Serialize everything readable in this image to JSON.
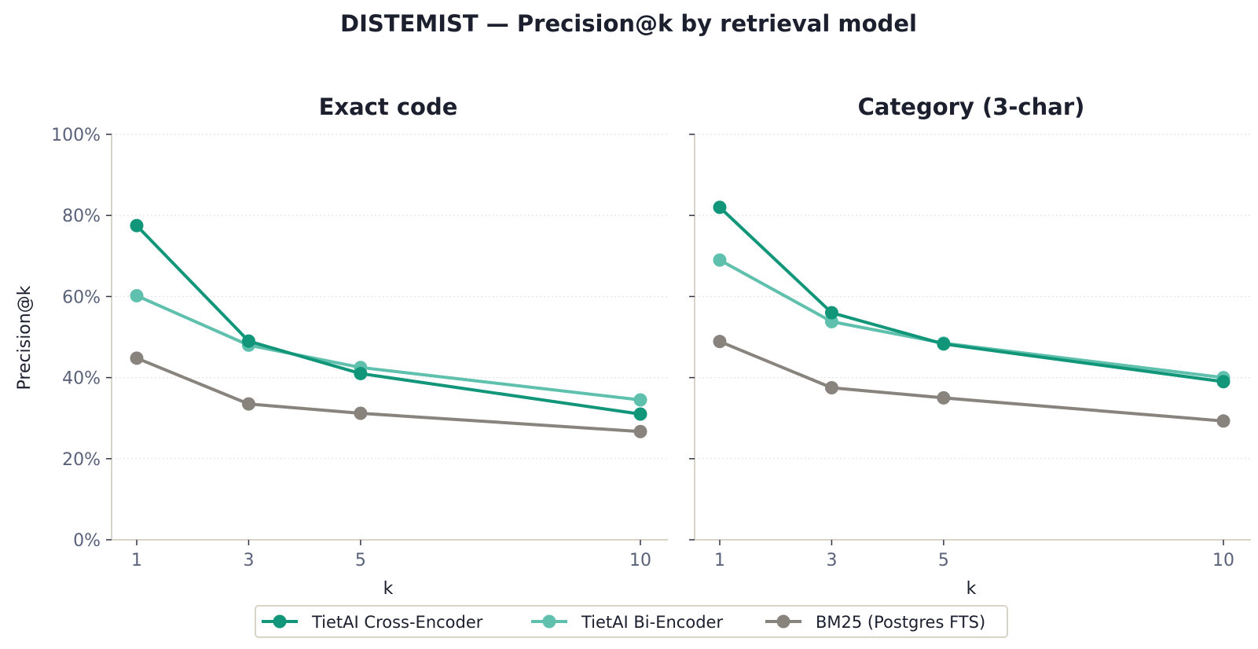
{
  "chart_data": {
    "type": "line",
    "title": "DISTEMIST — Precision@k by retrieval model",
    "x": [
      1,
      3,
      5,
      10
    ],
    "ylim": [
      0,
      100
    ],
    "yticks": [
      0,
      20,
      40,
      60,
      80,
      100
    ],
    "ytick_labels": [
      "0%",
      "20%",
      "40%",
      "60%",
      "80%",
      "100%"
    ],
    "xlabel": "k",
    "ylabel": "Precision@k",
    "grid": "y-dotted",
    "legend_position": "bottom-center",
    "series_meta": [
      {
        "name": "TietAI Cross-Encoder",
        "color": "#12967a"
      },
      {
        "name": "TietAI Bi-Encoder",
        "color": "#5fc0ad"
      },
      {
        "name": "BM25 (Postgres FTS)",
        "color": "#88837d"
      }
    ],
    "panels": [
      {
        "title": "Exact code",
        "series": [
          {
            "name": "TietAI Cross-Encoder",
            "values": [
              77.5,
              49.0,
              41.0,
              31.0
            ]
          },
          {
            "name": "TietAI Bi-Encoder",
            "values": [
              60.2,
              48.0,
              42.5,
              34.5
            ]
          },
          {
            "name": "BM25 (Postgres FTS)",
            "values": [
              44.8,
              33.5,
              31.2,
              26.7
            ]
          }
        ]
      },
      {
        "title": "Category (3-char)",
        "series": [
          {
            "name": "TietAI Cross-Encoder",
            "values": [
              82.0,
              56.0,
              48.3,
              39.0
            ]
          },
          {
            "name": "TietAI Bi-Encoder",
            "values": [
              69.0,
              53.8,
              48.5,
              40.0
            ]
          },
          {
            "name": "BM25 (Postgres FTS)",
            "values": [
              48.9,
              37.5,
              35.0,
              29.3
            ]
          }
        ]
      }
    ]
  }
}
